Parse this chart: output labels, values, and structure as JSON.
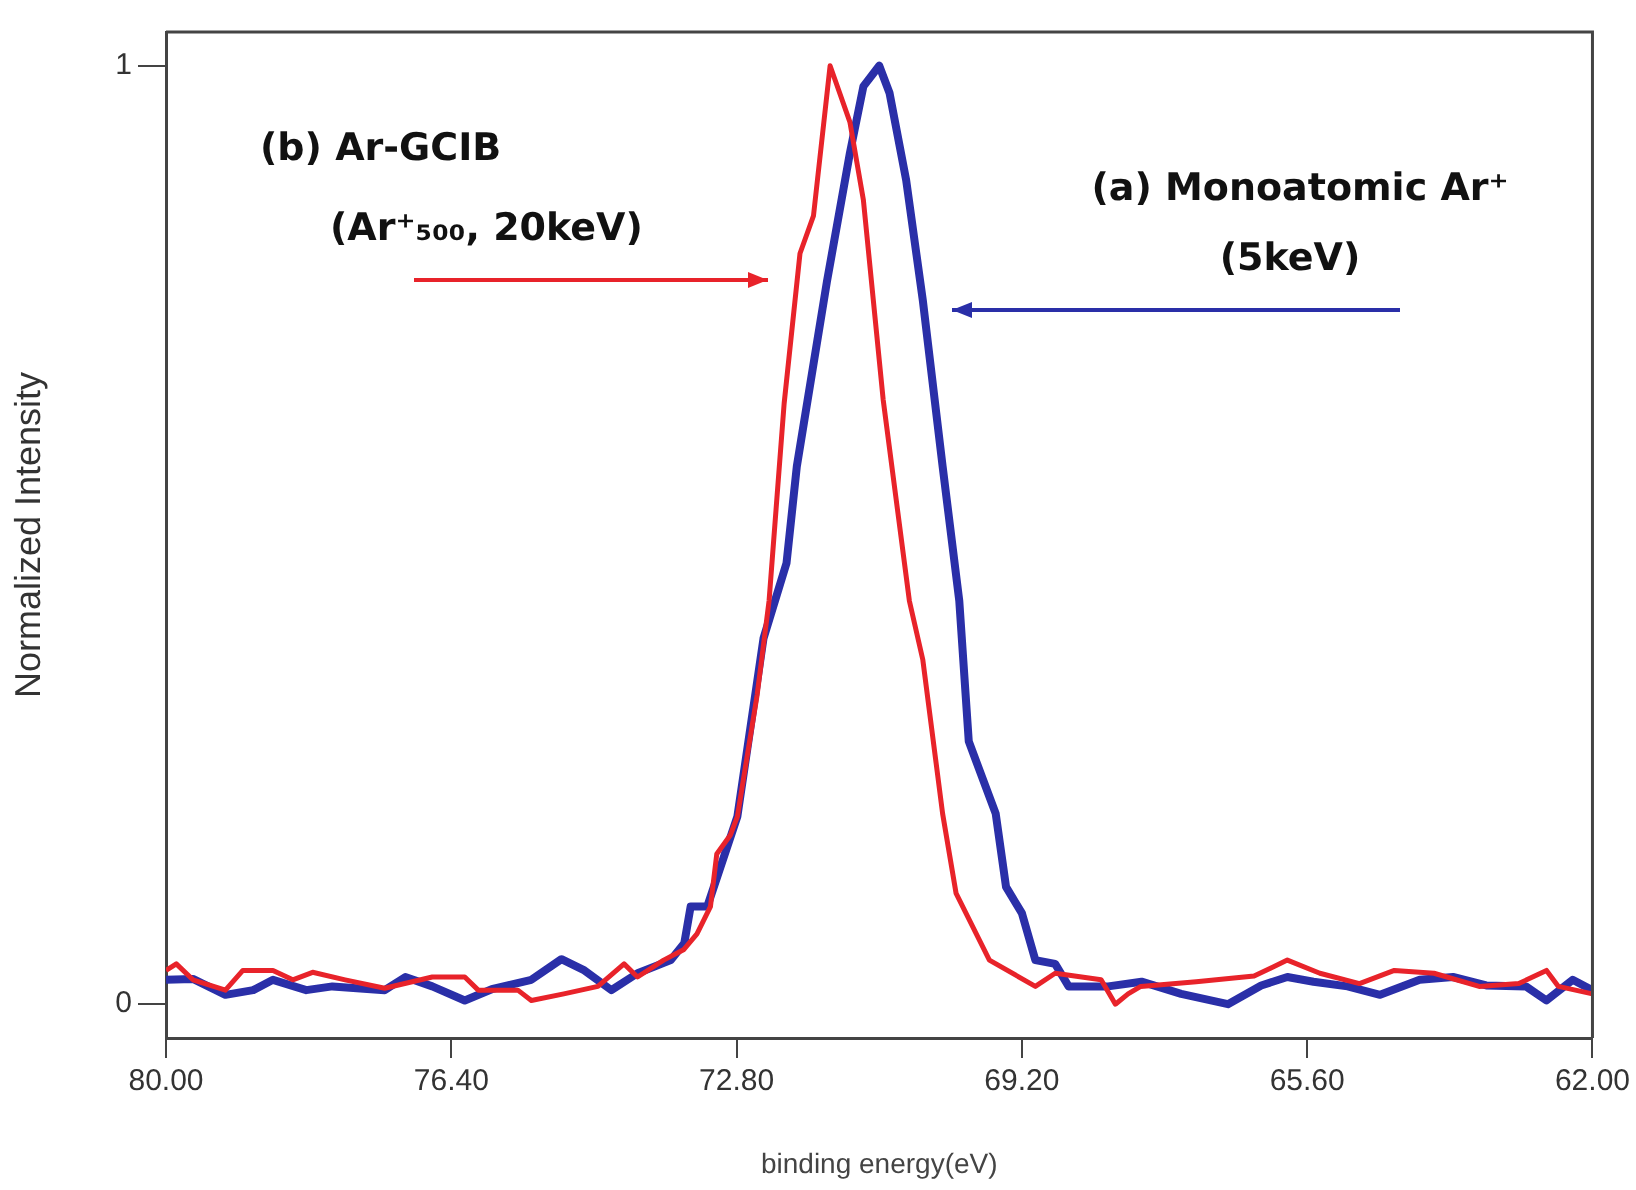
{
  "chart_data": {
    "type": "line",
    "xlabel": "binding energy(eV)",
    "ylabel": "Normalized Intensity",
    "xlim": [
      80,
      62
    ],
    "xticks": [
      {
        "value": 80,
        "label": "80.00"
      },
      {
        "value": 76.4,
        "label": "76.40"
      },
      {
        "value": 72.8,
        "label": "72.80"
      },
      {
        "value": 69.2,
        "label": "69.20"
      },
      {
        "value": 65.6,
        "label": "65.60"
      },
      {
        "value": 62,
        "label": "62.00"
      }
    ],
    "ylim": [
      -0.036,
      1.036
    ],
    "yticks": [
      0,
      1
    ],
    "grid": false,
    "legend": false,
    "marker": "none",
    "line_style": "solid",
    "series": [
      {
        "color": "#e8232a",
        "x": [
          80,
          79.87,
          79.66,
          79.25,
          79.03,
          78.65,
          78.4,
          78.15,
          77.74,
          77.24,
          76.64,
          76.23,
          76.06,
          75.56,
          75.39,
          74.98,
          74.55,
          74.22,
          74.05,
          73.72,
          73.47,
          73.3,
          73.13,
          73.05,
          72.88,
          72.79,
          72.54,
          72.39,
          72.2,
          72.0,
          71.83,
          71.62,
          71.37,
          71.2,
          70.95,
          70.62,
          70.45,
          70.2,
          70.03,
          69.61,
          69.03,
          68.78,
          68.2,
          68.02,
          67.86,
          67.7,
          67.0,
          66.27,
          65.85,
          65.44,
          64.94,
          64.5,
          64.0,
          63.43,
          62.93,
          62.58,
          62.43,
          62.0
        ],
        "values": [
          0.036,
          0.043,
          0.026,
          0.015,
          0.036,
          0.036,
          0.026,
          0.034,
          0.026,
          0.017,
          0.029,
          0.029,
          0.015,
          0.015,
          0.004,
          0.011,
          0.019,
          0.043,
          0.029,
          0.047,
          0.058,
          0.075,
          0.104,
          0.16,
          0.18,
          0.2,
          0.33,
          0.43,
          0.64,
          0.8,
          0.84,
          1.0,
          0.94,
          0.857,
          0.644,
          0.43,
          0.367,
          0.203,
          0.118,
          0.047,
          0.019,
          0.033,
          0.026,
          0.0,
          0.011,
          0.019,
          0.024,
          0.03,
          0.047,
          0.033,
          0.022,
          0.036,
          0.033,
          0.019,
          0.022,
          0.036,
          0.019,
          0.011
        ]
      },
      {
        "color": "#2a2fa8",
        "x": [
          80,
          79.66,
          79.25,
          78.9,
          78.65,
          78.23,
          77.9,
          77.24,
          76.98,
          76.64,
          76.23,
          75.89,
          75.39,
          75.01,
          74.72,
          74.38,
          74.05,
          73.63,
          73.46,
          73.38,
          73.17,
          72.79,
          72.46,
          72.17,
          72.04,
          71.66,
          71.37,
          71.2,
          71.0,
          70.87,
          70.66,
          70.45,
          70.2,
          69.99,
          69.87,
          69.53,
          69.4,
          69.2,
          69.03,
          68.78,
          68.61,
          68.11,
          67.69,
          67.19,
          66.6,
          66.18,
          65.85,
          65.52,
          65.09,
          64.68,
          64.18,
          63.76,
          63.34,
          62.84,
          62.58,
          62.25,
          62.0
        ],
        "values": [
          0.026,
          0.027,
          0.01,
          0.015,
          0.026,
          0.015,
          0.019,
          0.015,
          0.029,
          0.019,
          0.004,
          0.016,
          0.026,
          0.048,
          0.036,
          0.015,
          0.033,
          0.047,
          0.065,
          0.104,
          0.104,
          0.2,
          0.39,
          0.47,
          0.573,
          0.77,
          0.907,
          0.978,
          1.0,
          0.971,
          0.878,
          0.75,
          0.573,
          0.43,
          0.28,
          0.203,
          0.125,
          0.097,
          0.047,
          0.043,
          0.019,
          0.019,
          0.024,
          0.011,
          0.0,
          0.02,
          0.029,
          0.024,
          0.019,
          0.01,
          0.026,
          0.029,
          0.02,
          0.019,
          0.004,
          0.026,
          0.015
        ]
      }
    ],
    "annotations": [
      "(b) Ar-GCIB\n(Ar⁺₅₀₀, 20keV)",
      "(a) Monoatomic Ar⁺\n(5keV)"
    ]
  }
}
